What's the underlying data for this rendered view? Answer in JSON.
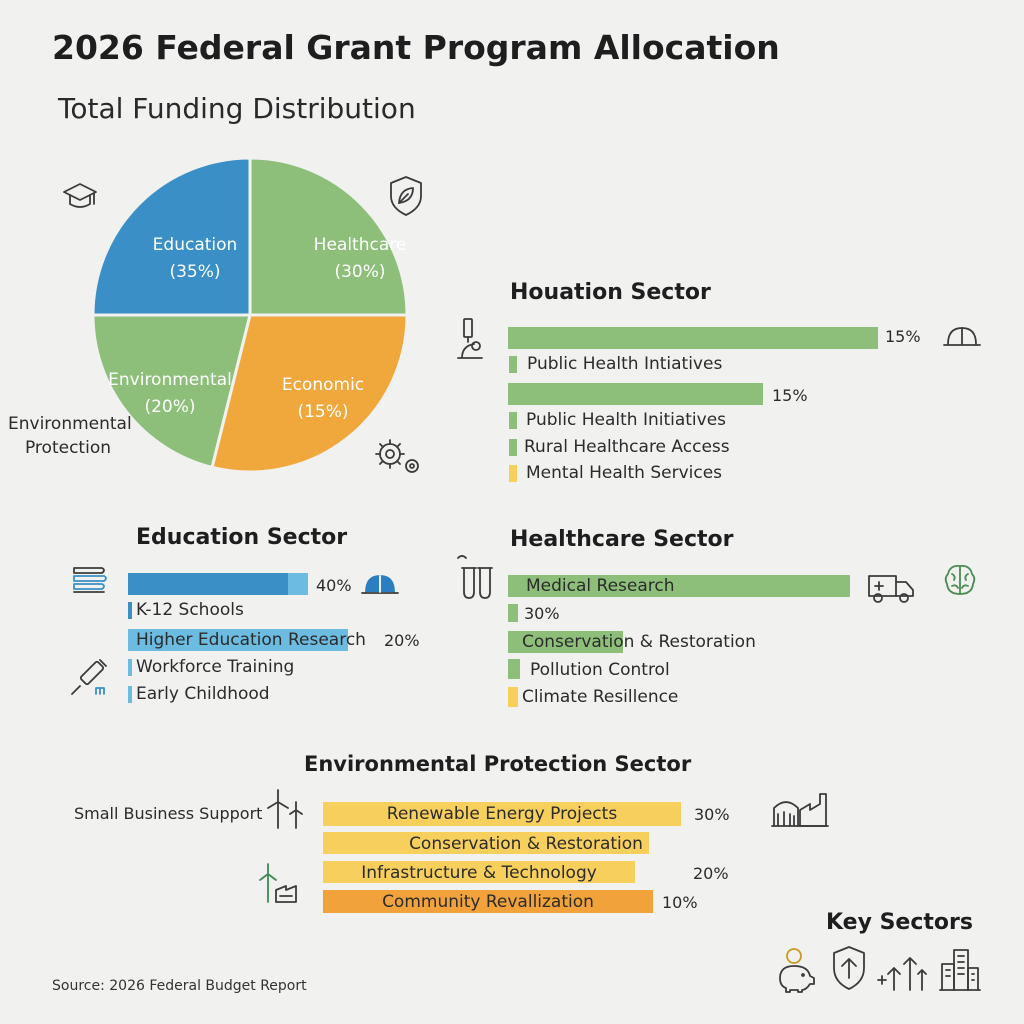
{
  "title": "2026 Federal Grant Program Allocation",
  "subtitle": "Total Funding Distribution",
  "source": "Source: 2026 Federal Budget Report",
  "colors": {
    "blue": "#3a8fc6",
    "green": "#8dbf7a",
    "orange": "#f0a83c",
    "yellow": "#f6cf5c",
    "lightblue": "#6cbbe0",
    "amber": "#f1a23a"
  },
  "chart_data": [
    {
      "type": "pie",
      "title": "Total Funding Distribution",
      "slices": [
        {
          "label": "Education",
          "value": 35,
          "display": "(35%)",
          "color": "#3a8fc6"
        },
        {
          "label": "Healthcare",
          "value": 30,
          "display": "(30%)",
          "color": "#8dbf7a"
        },
        {
          "label": "Economic",
          "value": 15,
          "display": "(15%)",
          "color": "#f0a83c"
        },
        {
          "label": "Environmental",
          "value": 20,
          "display": "(20%)",
          "color": "#8dbf7a"
        }
      ],
      "outside_label": "Environmental Protection"
    },
    {
      "type": "bar",
      "title": "Houation Sector",
      "rows": [
        {
          "label": "",
          "value_label": "15%",
          "color": "#8dbf7a",
          "kind": "bar"
        },
        {
          "label": "Public Health Intiatives",
          "value_label": "",
          "color": "#8dbf7a",
          "kind": "tick"
        },
        {
          "label": "",
          "value_label": "15%",
          "color": "#8dbf7a",
          "kind": "bar"
        },
        {
          "label": "Public Health Initiatives",
          "value_label": "",
          "color": "#8dbf7a",
          "kind": "tick"
        },
        {
          "label": "Rural Healthcare Access",
          "value_label": "",
          "color": "#8dbf7a",
          "kind": "tick"
        },
        {
          "label": "Mental Health Services",
          "value_label": "",
          "color": "#f6cf5c",
          "kind": "tick"
        }
      ]
    },
    {
      "type": "bar",
      "title": "Education Sector",
      "rows": [
        {
          "label": "",
          "value_label": "40%",
          "color": "#3a8fc6",
          "kind": "bar"
        },
        {
          "label": "K-12 Schools",
          "value_label": "",
          "color": "#3a8fc6",
          "kind": "tick"
        },
        {
          "label": "Higher Education Research",
          "value_label": "20%",
          "color": "#6cbbe0",
          "kind": "labelbar"
        },
        {
          "label": "Workforce Training",
          "value_label": "",
          "color": "#6cbbe0",
          "kind": "tick"
        },
        {
          "label": "Early Childhood",
          "value_label": "",
          "color": "#6cbbe0",
          "kind": "tick"
        }
      ]
    },
    {
      "type": "bar",
      "title": "Healthcare Sector",
      "rows": [
        {
          "label": "Medical Research",
          "value_label": "",
          "color": "#8dbf7a",
          "kind": "labelbar"
        },
        {
          "label": "30%",
          "value_label": "",
          "color": "#8dbf7a",
          "kind": "tick"
        },
        {
          "label": "Conservation & Restoration",
          "value_label": "",
          "color": "#8dbf7a",
          "kind": "partbar"
        },
        {
          "label": "Pollution Control",
          "value_label": "",
          "color": "#8dbf7a",
          "kind": "tick"
        },
        {
          "label": "Climate Resillence",
          "value_label": "",
          "color": "#f6cf5c",
          "kind": "tick"
        }
      ]
    },
    {
      "type": "bar",
      "title": "Environmental Protection Sector",
      "side_label": "Small Business Support",
      "rows": [
        {
          "label": "Renewable Energy Projects",
          "value_label": "30%",
          "color": "#f6cf5c"
        },
        {
          "label": "Conservation & Restoration",
          "value_label": "",
          "color": "#f6cf5c"
        },
        {
          "label": "Infrastructure & Technology",
          "value_label": "20%",
          "color": "#f6cf5c"
        },
        {
          "label": "Community Revallization",
          "value_label": "10%",
          "color": "#f1a23a"
        }
      ]
    }
  ],
  "key_sectors": {
    "title": "Key Sectors",
    "icons": [
      "piggy-bank-icon",
      "shield-arrow-icon",
      "growth-arrows-icon",
      "city-buildings-icon"
    ]
  }
}
